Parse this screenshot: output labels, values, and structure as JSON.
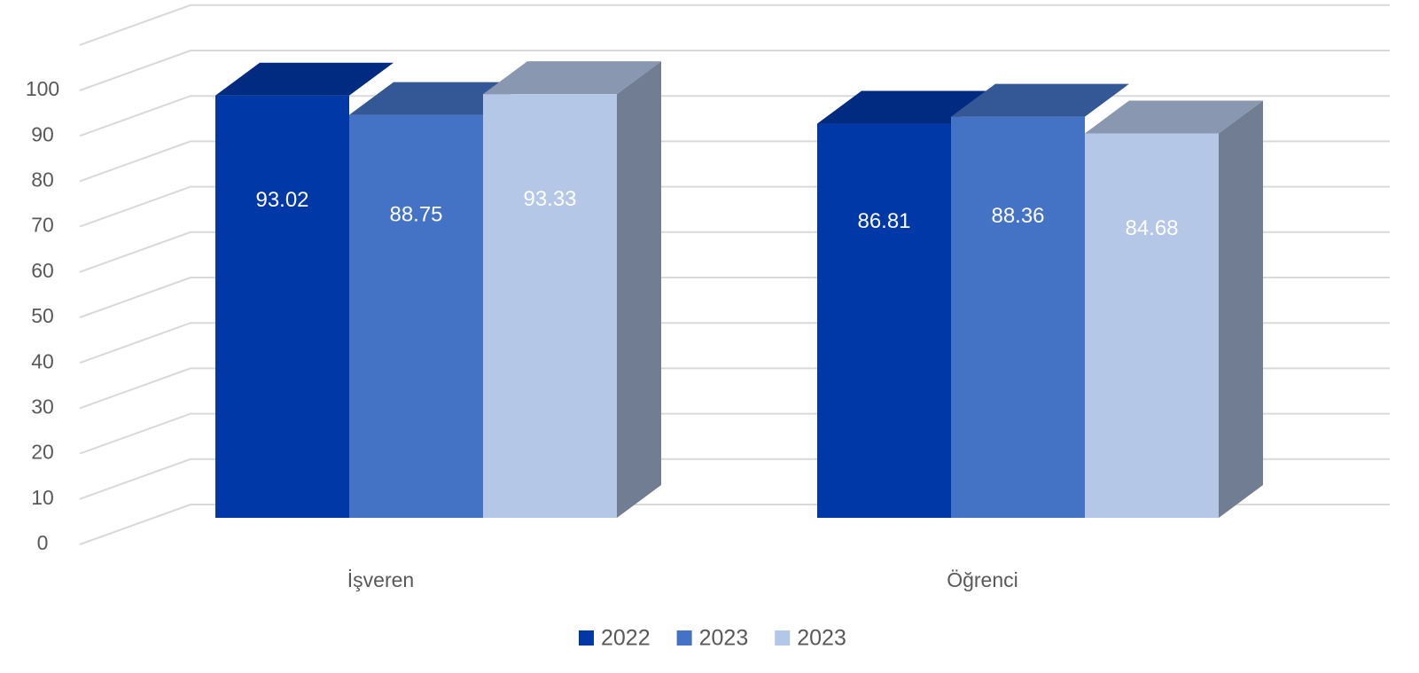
{
  "chart_data": {
    "type": "bar3d",
    "categories": [
      "İşveren",
      "Öğrenci"
    ],
    "series": [
      {
        "name": "2022",
        "color": "#0038a8",
        "values": [
          93.02,
          86.81
        ]
      },
      {
        "name": "2023",
        "color": "#4472c4",
        "values": [
          88.75,
          88.36
        ]
      },
      {
        "name": "2023",
        "color": "#b4c7e7",
        "values": [
          93.33,
          84.68
        ]
      }
    ],
    "ylim": [
      0,
      110
    ],
    "yticks": [
      0,
      10,
      20,
      30,
      40,
      50,
      60,
      70,
      80,
      90,
      100
    ],
    "grid": true,
    "legend": "bottom"
  }
}
